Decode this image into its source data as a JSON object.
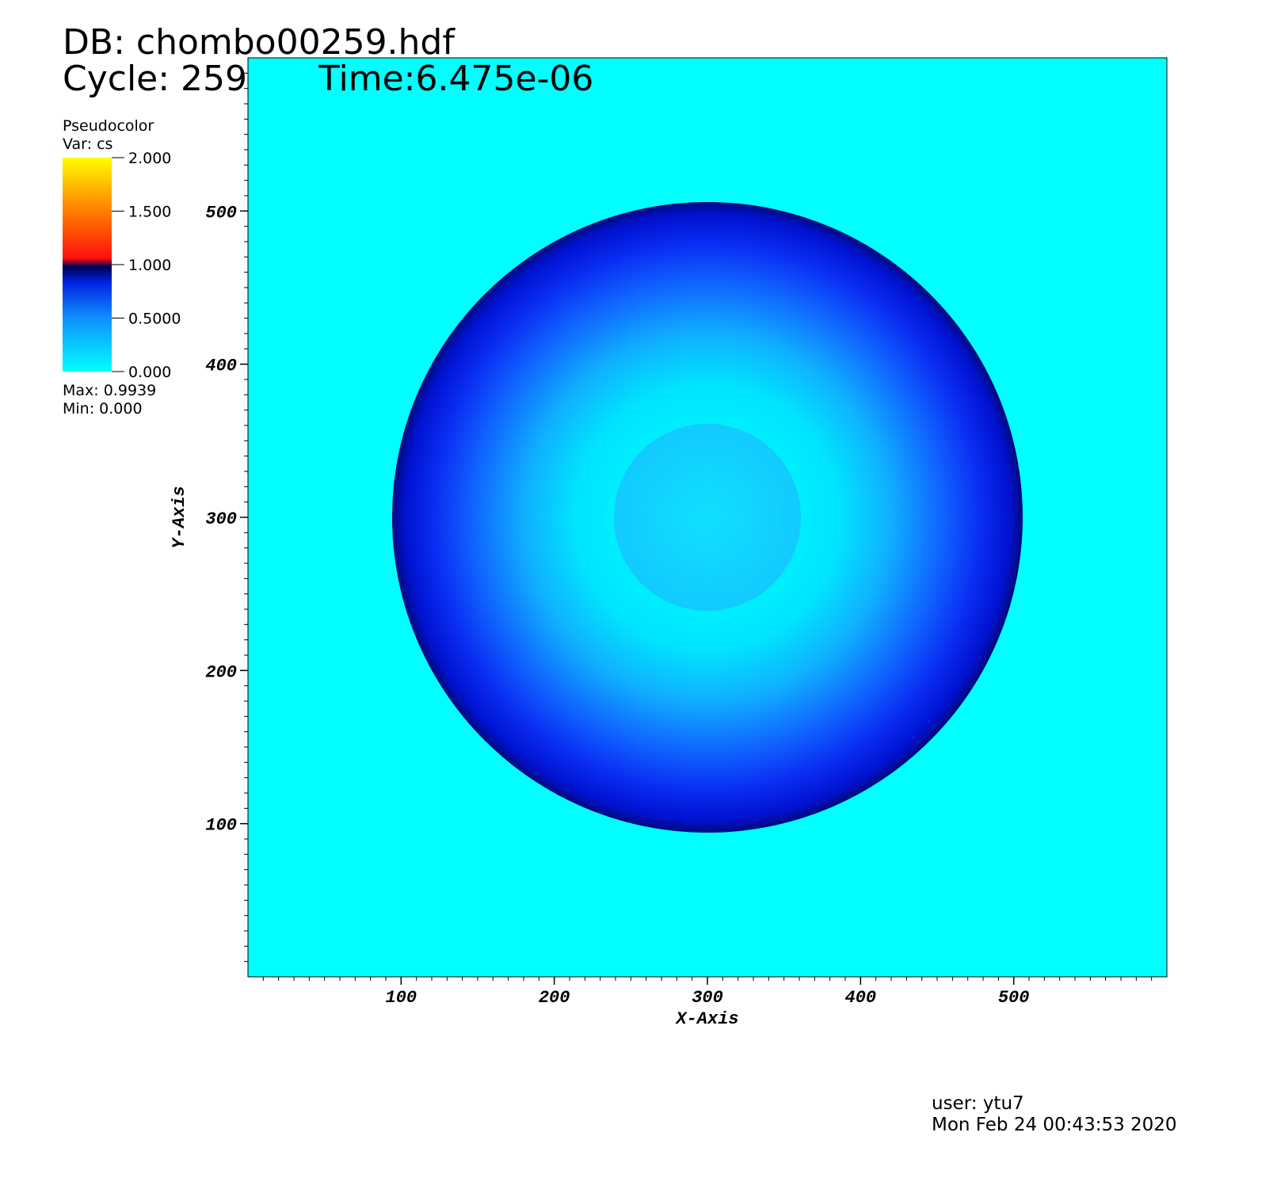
{
  "header": {
    "db": "DB: chombo00259.hdf",
    "cycle": "Cycle: 259",
    "time": "Time:6.475e-06"
  },
  "chart_data": {
    "type": "pseudocolor",
    "xlabel": "X-Axis",
    "ylabel": "Y-Axis",
    "xlim": [
      0,
      600
    ],
    "ylim": [
      0,
      600
    ],
    "xticks": [
      100,
      200,
      300,
      400,
      500
    ],
    "yticks": [
      100,
      200,
      300,
      400,
      500
    ],
    "legend": {
      "title": "Pseudocolor",
      "var": "Var: cs",
      "clim": [
        0,
        2
      ],
      "ticks": [
        {
          "value": 2,
          "label": "2.000"
        },
        {
          "value": 1.5,
          "label": "1.500"
        },
        {
          "value": 1,
          "label": "1.000"
        },
        {
          "value": 0.5,
          "label": "0.5000"
        },
        {
          "value": 0,
          "label": "0.000"
        }
      ],
      "max": "Max:  0.9939",
      "min": "Min:  0.000"
    }
  },
  "footer": {
    "user": "user: ytu7",
    "date": "Mon Feb 24 00:43:53 2020"
  }
}
